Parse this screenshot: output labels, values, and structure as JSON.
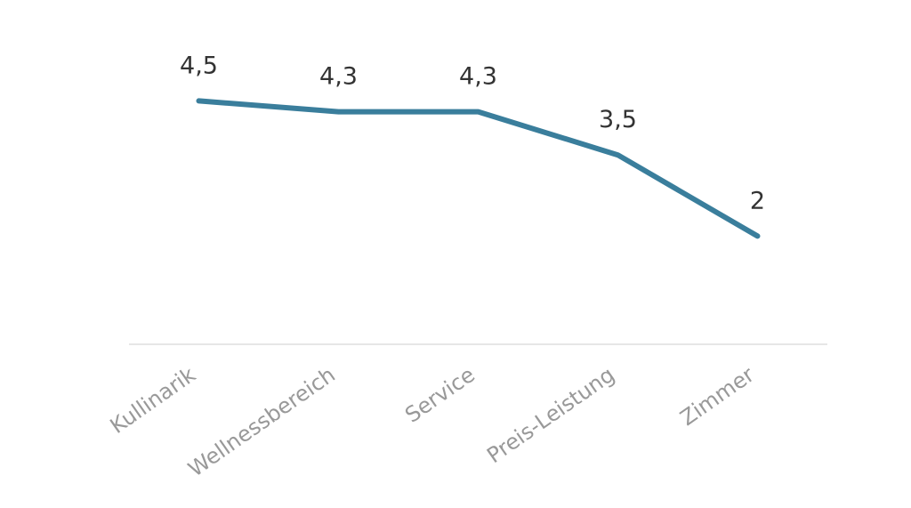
{
  "chart_data": {
    "type": "line",
    "categories": [
      "Kullinarik",
      "Wellnessbereich",
      "Service",
      "Preis-Leistung",
      "Zimmer"
    ],
    "series": [
      {
        "values": [
          4.5,
          4.3,
          4.3,
          3.5,
          2
        ],
        "data_labels": [
          "4,5",
          "4,3",
          "4,3",
          "3,5",
          "2"
        ]
      }
    ],
    "ylim": [
      0,
      5
    ],
    "grid": false,
    "colors": {
      "line": "#3A7E9C",
      "axis": "#DDDDDD",
      "tick_label": "#999999",
      "data_label": "#333333"
    }
  }
}
